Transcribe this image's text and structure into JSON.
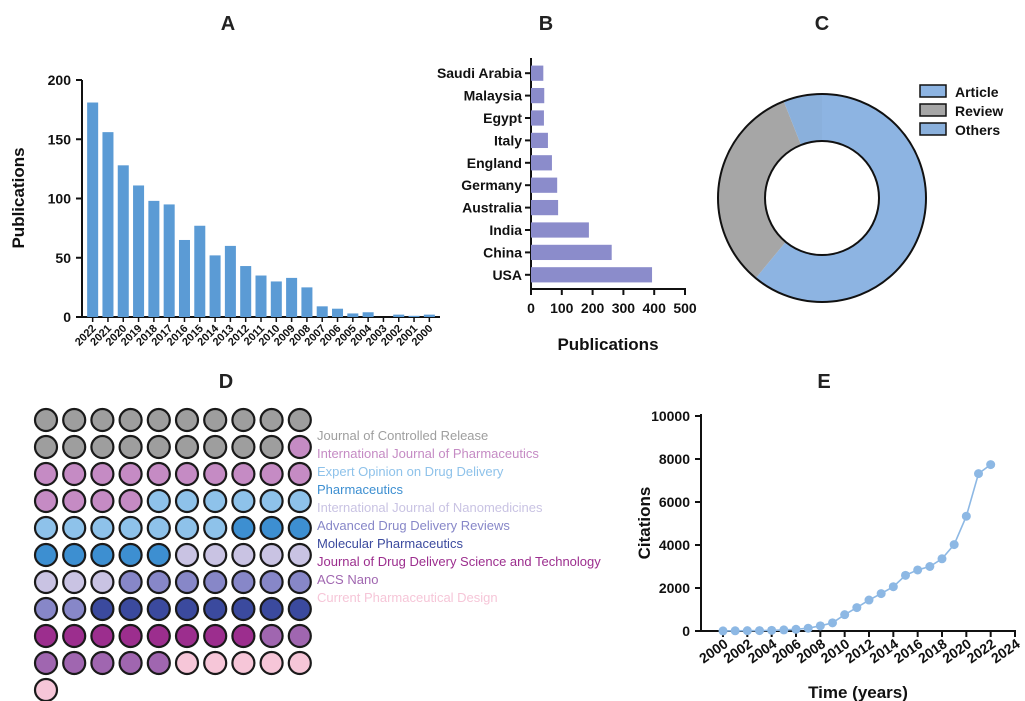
{
  "chart_data": [
    {
      "panel": "A",
      "type": "bar",
      "orientation": "vertical",
      "ylabel": "Publications",
      "ylim": [
        0,
        200
      ],
      "yticks": [
        0,
        50,
        100,
        150,
        200
      ],
      "color": "#5b9bd5",
      "categories": [
        "2022",
        "2021",
        "2020",
        "2019",
        "2018",
        "2017",
        "2016",
        "2015",
        "2014",
        "2013",
        "2012",
        "2011",
        "2010",
        "2009",
        "2008",
        "2007",
        "2006",
        "2005",
        "2004",
        "2003",
        "2002",
        "2001",
        "2000"
      ],
      "values": [
        181,
        156,
        128,
        111,
        98,
        95,
        65,
        77,
        52,
        60,
        43,
        35,
        30,
        33,
        25,
        9,
        7,
        3,
        4,
        0,
        2,
        1,
        2
      ]
    },
    {
      "panel": "B",
      "type": "bar",
      "orientation": "horizontal",
      "xlabel": "Publications",
      "xlim": [
        0,
        500
      ],
      "xticks": [
        0,
        100,
        200,
        300,
        400,
        500
      ],
      "color": "#8b8ccb",
      "categories": [
        "Saudi Arabia",
        "Malaysia",
        "Egypt",
        "Italy",
        "England",
        "Germany",
        "Australia",
        "India",
        "China",
        "USA"
      ],
      "values": [
        40,
        43,
        42,
        55,
        68,
        85,
        88,
        188,
        262,
        393
      ]
    },
    {
      "panel": "C",
      "type": "pie",
      "donut": true,
      "legend_position": "top-right",
      "labels": [
        "Article",
        "Review",
        "Others"
      ],
      "values": [
        61,
        33,
        6
      ],
      "colors": [
        "#8db4e2",
        "#a6a6a6",
        "#8ab0dc"
      ]
    },
    {
      "panel": "D",
      "type": "waffle",
      "rows": 10,
      "cols": 10,
      "cells": [
        "Journal of Controlled Release",
        "Journal of Controlled Release",
        "Journal of Controlled Release",
        "Journal of Controlled Release",
        "Journal of Controlled Release",
        "Journal of Controlled Release",
        "Journal of Controlled Release",
        "Journal of Controlled Release",
        "Journal of Controlled Release",
        "Journal of Controlled Release",
        "Journal of Controlled Release",
        "Journal of Controlled Release",
        "Journal of Controlled Release",
        "Journal of Controlled Release",
        "Journal of Controlled Release",
        "Journal of Controlled Release",
        "Journal of Controlled Release",
        "Journal of Controlled Release",
        "Journal of Controlled Release",
        "International Journal of Pharmaceutics",
        "International Journal of Pharmaceutics",
        "International Journal of Pharmaceutics",
        "International Journal of Pharmaceutics",
        "International Journal of Pharmaceutics",
        "International Journal of Pharmaceutics",
        "International Journal of Pharmaceutics",
        "International Journal of Pharmaceutics",
        "International Journal of Pharmaceutics",
        "International Journal of Pharmaceutics",
        "International Journal of Pharmaceutics",
        "International Journal of Pharmaceutics",
        "International Journal of Pharmaceutics",
        "International Journal of Pharmaceutics",
        "International Journal of Pharmaceutics",
        "Expert Opinion on Drug Delivery",
        "Expert Opinion on Drug Delivery",
        "Expert Opinion on Drug Delivery",
        "Expert Opinion on Drug Delivery",
        "Expert Opinion on Drug Delivery",
        "Expert Opinion on Drug Delivery",
        "Expert Opinion on Drug Delivery",
        "Expert Opinion on Drug Delivery",
        "Expert Opinion on Drug Delivery",
        "Expert Opinion on Drug Delivery",
        "Expert Opinion on Drug Delivery",
        "Expert Opinion on Drug Delivery",
        "Expert Opinion on Drug Delivery",
        "Pharmaceutics",
        "Pharmaceutics",
        "Pharmaceutics",
        "Pharmaceutics",
        "Pharmaceutics",
        "Pharmaceutics",
        "Pharmaceutics",
        "Pharmaceutics",
        "International Journal of Nanomedicines",
        "International Journal of Nanomedicines",
        "International Journal of Nanomedicines",
        "International Journal of Nanomedicines",
        "International Journal of Nanomedicines",
        "International Journal of Nanomedicines",
        "International Journal of Nanomedicines",
        "International Journal of Nanomedicines",
        "Advanced Drug Delivery Reviews",
        "Advanced Drug Delivery Reviews",
        "Advanced Drug Delivery Reviews",
        "Advanced Drug Delivery Reviews",
        "Advanced Drug Delivery Reviews",
        "Advanced Drug Delivery Reviews",
        "Advanced Drug Delivery Reviews",
        "Advanced Drug Delivery Reviews",
        "Advanced Drug Delivery Reviews",
        "Molecular Pharmaceutics",
        "Molecular Pharmaceutics",
        "Molecular Pharmaceutics",
        "Molecular Pharmaceutics",
        "Molecular Pharmaceutics",
        "Molecular Pharmaceutics",
        "Molecular Pharmaceutics",
        "Molecular Pharmaceutics",
        "Journal of Drug Delivery Science and Technology",
        "Journal of Drug Delivery Science and Technology",
        "Journal of Drug Delivery Science and Technology",
        "Journal of Drug Delivery Science and Technology",
        "Journal of Drug Delivery Science and Technology",
        "Journal of Drug Delivery Science and Technology",
        "Journal of Drug Delivery Science and Technology",
        "Journal of Drug Delivery Science and Technology",
        "ACS Nano",
        "ACS Nano",
        "ACS Nano",
        "ACS Nano",
        "ACS Nano",
        "ACS Nano",
        "ACS Nano",
        "Current Pharmaceutical Design",
        "Current Pharmaceutical Design",
        "Current Pharmaceutical Design",
        "Current Pharmaceutical Design",
        "Current Pharmaceutical Design",
        "Current Pharmaceutical Design"
      ],
      "legend": [
        {
          "name": "Journal of Controlled Release",
          "color": "#9e9e9e"
        },
        {
          "name": "International Journal of Pharmaceutics",
          "color": "#c58bc4"
        },
        {
          "name": "Expert Opinion on Drug Delivery",
          "color": "#8ec2ea"
        },
        {
          "name": "Pharmaceutics",
          "color": "#3d8fd1"
        },
        {
          "name": "International Journal of Nanomedicines",
          "color": "#c9c3e3"
        },
        {
          "name": "Advanced Drug Delivery Reviews",
          "color": "#8787c8"
        },
        {
          "name": "Molecular Pharmaceutics",
          "color": "#3b4a9e"
        },
        {
          "name": "Journal of Drug Delivery Science and Technology",
          "color": "#9c2e8e"
        },
        {
          "name": "ACS Nano",
          "color": "#a066b0"
        },
        {
          "name": "Current Pharmaceutical Design",
          "color": "#f6c6d8"
        }
      ]
    },
    {
      "panel": "E",
      "type": "line",
      "xlabel": "Time (years)",
      "ylabel": "Citations",
      "xlim": [
        2000,
        2024
      ],
      "ylim": [
        0,
        10000
      ],
      "xticks": [
        2000,
        2002,
        2004,
        2006,
        2008,
        2010,
        2012,
        2014,
        2016,
        2018,
        2020,
        2022,
        2024
      ],
      "yticks": [
        0,
        2000,
        4000,
        6000,
        8000,
        10000
      ],
      "color": "#8db8e4",
      "x": [
        2000,
        2001,
        2002,
        2003,
        2004,
        2005,
        2006,
        2007,
        2008,
        2009,
        2010,
        2011,
        2012,
        2013,
        2014,
        2015,
        2016,
        2017,
        2018,
        2019,
        2020,
        2021,
        2022
      ],
      "y": [
        5,
        10,
        15,
        20,
        30,
        50,
        80,
        130,
        240,
        380,
        760,
        1090,
        1440,
        1740,
        2060,
        2590,
        2840,
        3000,
        3360,
        4020,
        5340,
        7320,
        7740
      ]
    }
  ]
}
